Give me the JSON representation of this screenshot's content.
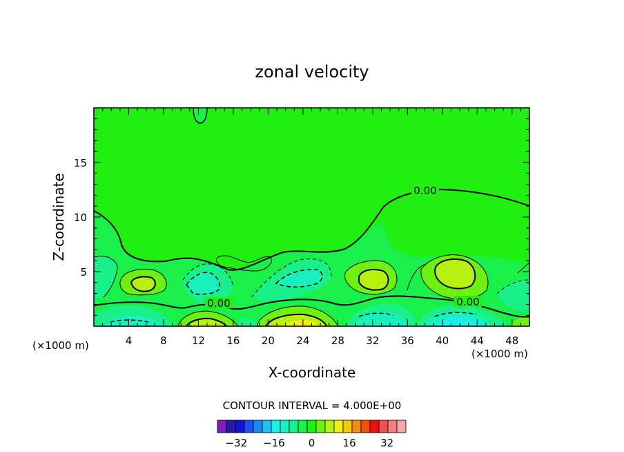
{
  "chart_data": {
    "type": "contour",
    "title": "zonal velocity",
    "xlabel": "X-coordinate",
    "ylabel": "Z-coordinate",
    "x_unit_left": "(×1000 m)",
    "x_unit_right": "(×1000 m)",
    "xlim": [
      0,
      50
    ],
    "ylim": [
      0,
      20
    ],
    "x_ticks": [
      4,
      8,
      12,
      16,
      20,
      24,
      28,
      32,
      36,
      40,
      44,
      48
    ],
    "y_ticks": [
      5,
      10,
      15
    ],
    "contour_interval_text": "CONTOUR INTERVAL = 4.000E+00",
    "contour_interval": 4,
    "contour_labels": [
      "0.00",
      "0.00",
      "0.00"
    ],
    "colorbar": {
      "min": -40,
      "max": 40,
      "tick_values": [
        -32,
        -16,
        0,
        16,
        32
      ],
      "tick_labels": [
        "-32",
        "-16",
        "0",
        "16",
        "32"
      ],
      "colors": [
        "#7a1fb8",
        "#2a1aa8",
        "#1414d0",
        "#1f4ff0",
        "#1e88f0",
        "#19c4f0",
        "#19f0e8",
        "#19f0c0",
        "#19f08a",
        "#19f04a",
        "#20f010",
        "#6ef010",
        "#b8f010",
        "#f0f010",
        "#f0c810",
        "#f08c10",
        "#f05010",
        "#f01010",
        "#f05050",
        "#f08080",
        "#f0a8a8"
      ]
    }
  }
}
